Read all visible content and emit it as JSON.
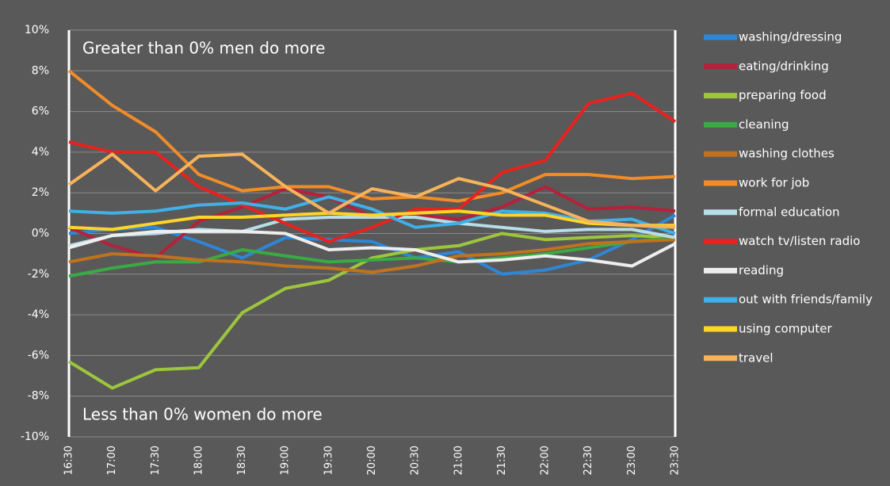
{
  "chart_data": {
    "type": "line",
    "annotations": [
      "Greater than 0% men do more",
      "Less than 0% women do more"
    ],
    "categories": [
      "16:30",
      "17:00",
      "17:30",
      "18:00",
      "18:30",
      "19:00",
      "19:30",
      "20:00",
      "20:30",
      "21:00",
      "21:30",
      "22:00",
      "22:30",
      "23:00",
      "23:30"
    ],
    "ylim": [
      -10,
      10
    ],
    "yticks": [
      {
        "value": -10,
        "label": "-10%"
      },
      {
        "value": -8,
        "label": "-8%"
      },
      {
        "value": -6,
        "label": "-6%"
      },
      {
        "value": -4,
        "label": "-4%"
      },
      {
        "value": -2,
        "label": "-2%"
      },
      {
        "value": 0,
        "label": "0%"
      },
      {
        "value": 2,
        "label": "2%"
      },
      {
        "value": 4,
        "label": "4%"
      },
      {
        "value": 6,
        "label": "6%"
      },
      {
        "value": 8,
        "label": "8%"
      },
      {
        "value": 10,
        "label": "10%"
      }
    ],
    "grid": true,
    "legend": "right",
    "series": [
      {
        "name": "washing/dressing",
        "color": "#2e86d6",
        "values": [
          0,
          0.2,
          0.3,
          -0.4,
          -1.2,
          -0.2,
          -0.3,
          -0.4,
          -1.2,
          -0.9,
          -2.0,
          -1.8,
          -1.3,
          -0.3,
          0.9
        ]
      },
      {
        "name": "eating/drinking",
        "color": "#b5213a",
        "values": [
          0.3,
          -0.6,
          -1.2,
          0.6,
          1.3,
          2.2,
          1.8,
          0.8,
          0.9,
          0.7,
          1.3,
          2.3,
          1.2,
          1.3,
          1.1
        ]
      },
      {
        "name": "preparing food",
        "color": "#9dc63c",
        "values": [
          -6.3,
          -7.6,
          -6.7,
          -6.6,
          -3.9,
          -2.7,
          -2.3,
          -1.2,
          -0.8,
          -0.6,
          0,
          -0.3,
          -0.2,
          -0.1,
          -0.2
        ]
      },
      {
        "name": "cleaning",
        "color": "#3aaa45",
        "values": [
          -2.1,
          -1.7,
          -1.4,
          -1.4,
          -0.8,
          -1.1,
          -1.4,
          -1.3,
          -1.2,
          -1.4,
          -1.2,
          -1.0,
          -0.7,
          -0.4,
          -0.2
        ]
      },
      {
        "name": "washing clothes",
        "color": "#c0731f",
        "values": [
          -1.4,
          -1.0,
          -1.1,
          -1.3,
          -1.4,
          -1.6,
          -1.7,
          -1.9,
          -1.6,
          -1.1,
          -1.0,
          -0.8,
          -0.5,
          -0.4,
          -0.3
        ]
      },
      {
        "name": "work for job",
        "color": "#f28c28",
        "values": [
          8.0,
          6.3,
          5.0,
          2.9,
          2.1,
          2.3,
          2.3,
          1.7,
          1.8,
          1.6,
          2.0,
          2.9,
          2.9,
          2.7,
          2.8
        ]
      },
      {
        "name": "formal education",
        "color": "#b7dde8",
        "values": [
          -0.6,
          -0.1,
          0.0,
          0.2,
          0.1,
          0.7,
          0.8,
          0.8,
          0.8,
          0.5,
          0.3,
          0.1,
          0.2,
          0.2,
          -0.2
        ]
      },
      {
        "name": "watch tv/listen radio",
        "color": "#e8221e",
        "values": [
          4.5,
          4.0,
          4.0,
          2.3,
          1.4,
          0.5,
          -0.4,
          0.3,
          1.2,
          1.2,
          3.0,
          3.6,
          6.4,
          6.9,
          5.5
        ]
      },
      {
        "name": "reading",
        "color": "#eeeeee",
        "values": [
          -0.7,
          -0.1,
          0.1,
          0.1,
          0.1,
          0,
          -0.8,
          -0.7,
          -0.8,
          -1.4,
          -1.3,
          -1.1,
          -1.3,
          -1.6,
          -0.5
        ]
      },
      {
        "name": "out with friends/family",
        "color": "#3fb0e8",
        "values": [
          1.1,
          1.0,
          1.1,
          1.4,
          1.5,
          1.2,
          1.8,
          1.2,
          0.3,
          0.5,
          1.1,
          1.0,
          0.6,
          0.7,
          0
        ]
      },
      {
        "name": "using computer",
        "color": "#ffd428",
        "values": [
          0.3,
          0.2,
          0.5,
          0.8,
          0.8,
          0.9,
          1.0,
          0.9,
          1.0,
          1.1,
          0.9,
          0.9,
          0.5,
          0.4,
          0.4
        ]
      },
      {
        "name": "travel",
        "color": "#f7b35a",
        "values": [
          2.4,
          3.9,
          2.1,
          3.8,
          3.9,
          2.3,
          1.0,
          2.2,
          1.8,
          2.7,
          2.2,
          1.4,
          0.6,
          0.4,
          0.3
        ]
      }
    ]
  }
}
